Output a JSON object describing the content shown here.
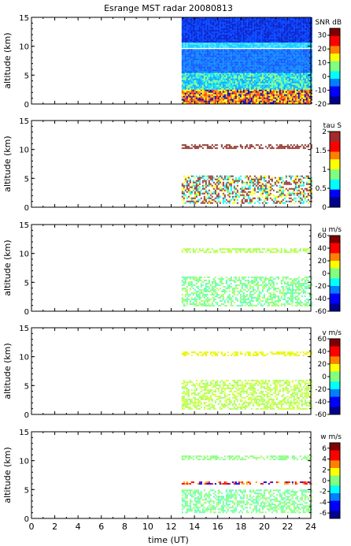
{
  "title": "Esrange MST radar 20080813",
  "chart_data": [
    {
      "type": "heatmap",
      "ylabel": "altitude (km)",
      "ylim": [
        0,
        15
      ],
      "yticks": [
        "0",
        "5",
        "10",
        "15"
      ],
      "xlim": [
        0,
        24
      ],
      "colorbar": {
        "label": "SNR dB",
        "min": -20,
        "max": 35,
        "ticks": [
          "30",
          "20",
          "10",
          "0",
          "-10",
          "-20"
        ]
      },
      "data_x_range": [
        12.9,
        24
      ],
      "layers": [
        {
          "name": "near-surface-layer",
          "y": [
            0.3,
            2.5
          ],
          "colors": [
            "#0000b0",
            "#ff3000",
            "#ff9000",
            "#ffff00"
          ]
        },
        {
          "name": "boundary-layer",
          "y": [
            2.5,
            5.5
          ],
          "colors": [
            "#00a0ff",
            "#00e0ff",
            "#80ff80"
          ]
        },
        {
          "name": "mid-troposphere",
          "y": [
            5.5,
            9.5
          ],
          "colors": [
            "#0050ff",
            "#0080ff"
          ]
        },
        {
          "name": "tropopause-layer",
          "y": [
            9.8,
            10.8
          ],
          "colors": [
            "#00c8ff",
            "#40e0ff"
          ]
        },
        {
          "name": "upper-background",
          "y": [
            10.8,
            15
          ],
          "colors": [
            "#0020d0",
            "#0040ff"
          ]
        }
      ]
    },
    {
      "type": "heatmap",
      "ylabel": "altitude (km)",
      "ylim": [
        0,
        15
      ],
      "yticks": [
        "0",
        "5",
        "10",
        "15"
      ],
      "xlim": [
        0,
        24
      ],
      "colorbar": {
        "label": "tau S",
        "min": 0,
        "max": 2,
        "ticks": [
          "2",
          "1.5",
          "1",
          "0.5",
          "0"
        ]
      },
      "data_x_range": [
        12.9,
        24
      ],
      "layers": [
        {
          "name": "tropopause-echo",
          "y": [
            10.1,
            10.9
          ],
          "colors": [
            "#8b3a3a",
            "#a04030"
          ]
        },
        {
          "name": "low-echo",
          "y": [
            0.8,
            5.5
          ],
          "colors": [
            "#8b3a3a",
            "#a04030",
            "#ffff00",
            "#00ffff"
          ]
        }
      ]
    },
    {
      "type": "heatmap",
      "ylabel": "altitude (km)",
      "ylim": [
        0,
        15
      ],
      "yticks": [
        "0",
        "5",
        "10",
        "15"
      ],
      "xlim": [
        0,
        24
      ],
      "colorbar": {
        "label": "u m/s",
        "min": -60,
        "max": 60,
        "ticks": [
          "60",
          "40",
          "20",
          "0",
          "-20",
          "-40",
          "-60"
        ]
      },
      "data_x_range": [
        12.9,
        24
      ],
      "layers": [
        {
          "name": "tropopause-wind",
          "y": [
            10.1,
            10.9
          ],
          "colors": [
            "#c8ff50",
            "#a0ff60"
          ]
        },
        {
          "name": "low-wind",
          "y": [
            1.0,
            6.0
          ],
          "colors": [
            "#60ffc0",
            "#80ff90",
            "#b0ff70"
          ]
        }
      ]
    },
    {
      "type": "heatmap",
      "ylabel": "altitude (km)",
      "ylim": [
        0,
        15
      ],
      "yticks": [
        "0",
        "5",
        "10",
        "15"
      ],
      "xlim": [
        0,
        24
      ],
      "colorbar": {
        "label": "v m/s",
        "min": -60,
        "max": 60,
        "ticks": [
          "60",
          "40",
          "20",
          "0",
          "-20",
          "-40",
          "-60"
        ]
      },
      "data_x_range": [
        12.9,
        24
      ],
      "layers": [
        {
          "name": "tropopause-wind",
          "y": [
            10.1,
            10.9
          ],
          "colors": [
            "#f0f000",
            "#e0ff20"
          ]
        },
        {
          "name": "low-wind",
          "y": [
            1.0,
            6.0
          ],
          "colors": [
            "#c0ff60",
            "#a0ff70",
            "#e0ff40"
          ]
        }
      ]
    },
    {
      "type": "heatmap",
      "ylabel": "altitude (km)",
      "ylim": [
        0,
        15
      ],
      "yticks": [
        "0",
        "5",
        "10",
        "15"
      ],
      "xlim": [
        0,
        24
      ],
      "xlabel": "time (UT)",
      "xticks": [
        "0",
        "2",
        "4",
        "6",
        "8",
        "10",
        "12",
        "14",
        "16",
        "18",
        "20",
        "22",
        "24"
      ],
      "colorbar": {
        "label": "w m/s",
        "min": -7,
        "max": 7,
        "ticks": [
          "6",
          "4",
          "2",
          "0",
          "-2",
          "-4",
          "-6"
        ]
      },
      "data_x_range": [
        12.9,
        24
      ],
      "layers": [
        {
          "name": "tropopause-wind",
          "y": [
            10.1,
            10.9
          ],
          "colors": [
            "#80ff90",
            "#a0ff70"
          ]
        },
        {
          "name": "low-wind",
          "y": [
            1.0,
            5.0
          ],
          "colors": [
            "#80ff90",
            "#a0ff70",
            "#60ffc0"
          ]
        },
        {
          "name": "streak-6km",
          "y": [
            5.9,
            6.4
          ],
          "colors": [
            "#0000ff",
            "#ffa000",
            "#ff0000"
          ]
        }
      ]
    }
  ],
  "colormaps": {
    "jet": [
      "#00008f",
      "#0000ff",
      "#0080ff",
      "#00ffff",
      "#80ff80",
      "#ffff00",
      "#ff8000",
      "#ff0000",
      "#800000"
    ],
    "tau": [
      "#00008f",
      "#0000ff",
      "#00ffff",
      "#80ff80",
      "#ffff00",
      "#ff8000",
      "#ff0000",
      "#a52a2a"
    ]
  }
}
